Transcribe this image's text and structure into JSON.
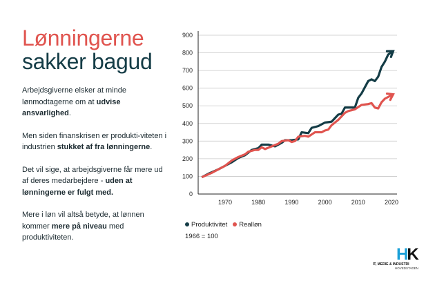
{
  "title": {
    "line1": "Lønningerne",
    "line2": "sakker bagud"
  },
  "paragraphs": [
    {
      "a": "Arbejdsgiverne elsker at minde lønmodtagerne om at ",
      "b": "udvise ansvarlighed",
      "c": "."
    },
    {
      "a": "Men siden finanskrisen er produkti-viteten i industrien ",
      "b": "stukket af fra lønningerne",
      "c": "."
    },
    {
      "a": "Det vil sige, at arbejdsgiverne får mere ud af deres medarbejdere - ",
      "b": "uden at lønningerne er fulgt med.",
      "c": ""
    },
    {
      "a": "Mere i løn vil altså betyde, at lønnen kommer ",
      "b": "mere på niveau",
      "c": " med produktiviteten."
    }
  ],
  "logo": {
    "mark": "HK",
    "line1": "IT, MEDIE & INDUSTRI",
    "line2": "HOVEDSTADEN"
  },
  "chart_data": {
    "type": "line",
    "title": "",
    "xlabel": "",
    "ylabel": "",
    "note": "1966 = 100",
    "xlim": [
      1962,
      2022
    ],
    "ylim": [
      0,
      900
    ],
    "xticks": [
      1970,
      1980,
      1990,
      2000,
      2010,
      2020
    ],
    "yticks": [
      0,
      100,
      200,
      300,
      400,
      500,
      600,
      700,
      800,
      900
    ],
    "grid": true,
    "legend": "bottom-left",
    "series": [
      {
        "name": "Produktivitet",
        "color": "#143c46",
        "x": [
          1963,
          1965,
          1968,
          1970,
          1972,
          1974,
          1976,
          1978,
          1980,
          1981,
          1983,
          1985,
          1987,
          1988,
          1990,
          1992,
          1993,
          1995,
          1996,
          1998,
          2000,
          2002,
          2004,
          2005,
          2006,
          2009,
          2010,
          2011,
          2013,
          2014,
          2015,
          2016,
          2017,
          2018,
          2019,
          2020.5
        ],
        "y": [
          95,
          115,
          140,
          160,
          180,
          205,
          220,
          250,
          260,
          280,
          280,
          270,
          290,
          305,
          305,
          310,
          350,
          345,
          375,
          385,
          405,
          410,
          450,
          455,
          490,
          490,
          545,
          570,
          640,
          650,
          640,
          665,
          720,
          750,
          790,
          810
        ]
      },
      {
        "name": "Realløn",
        "color": "#e0544f",
        "x": [
          1963,
          1966,
          1970,
          1972,
          1974,
          1976,
          1977,
          1979,
          1980,
          1981,
          1982,
          1984,
          1986,
          1987,
          1989,
          1990,
          1991,
          1992,
          1994,
          1995,
          1997,
          1999,
          2000,
          2001,
          2002,
          2004,
          2006,
          2007,
          2009,
          2011,
          2013,
          2014,
          2015,
          2016,
          2017,
          2018,
          2020.5
        ],
        "y": [
          95,
          120,
          160,
          190,
          210,
          225,
          240,
          250,
          250,
          265,
          255,
          270,
          285,
          300,
          305,
          295,
          300,
          325,
          330,
          325,
          350,
          350,
          360,
          365,
          390,
          420,
          460,
          470,
          480,
          505,
          510,
          515,
          490,
          485,
          520,
          540,
          565
        ]
      }
    ]
  }
}
